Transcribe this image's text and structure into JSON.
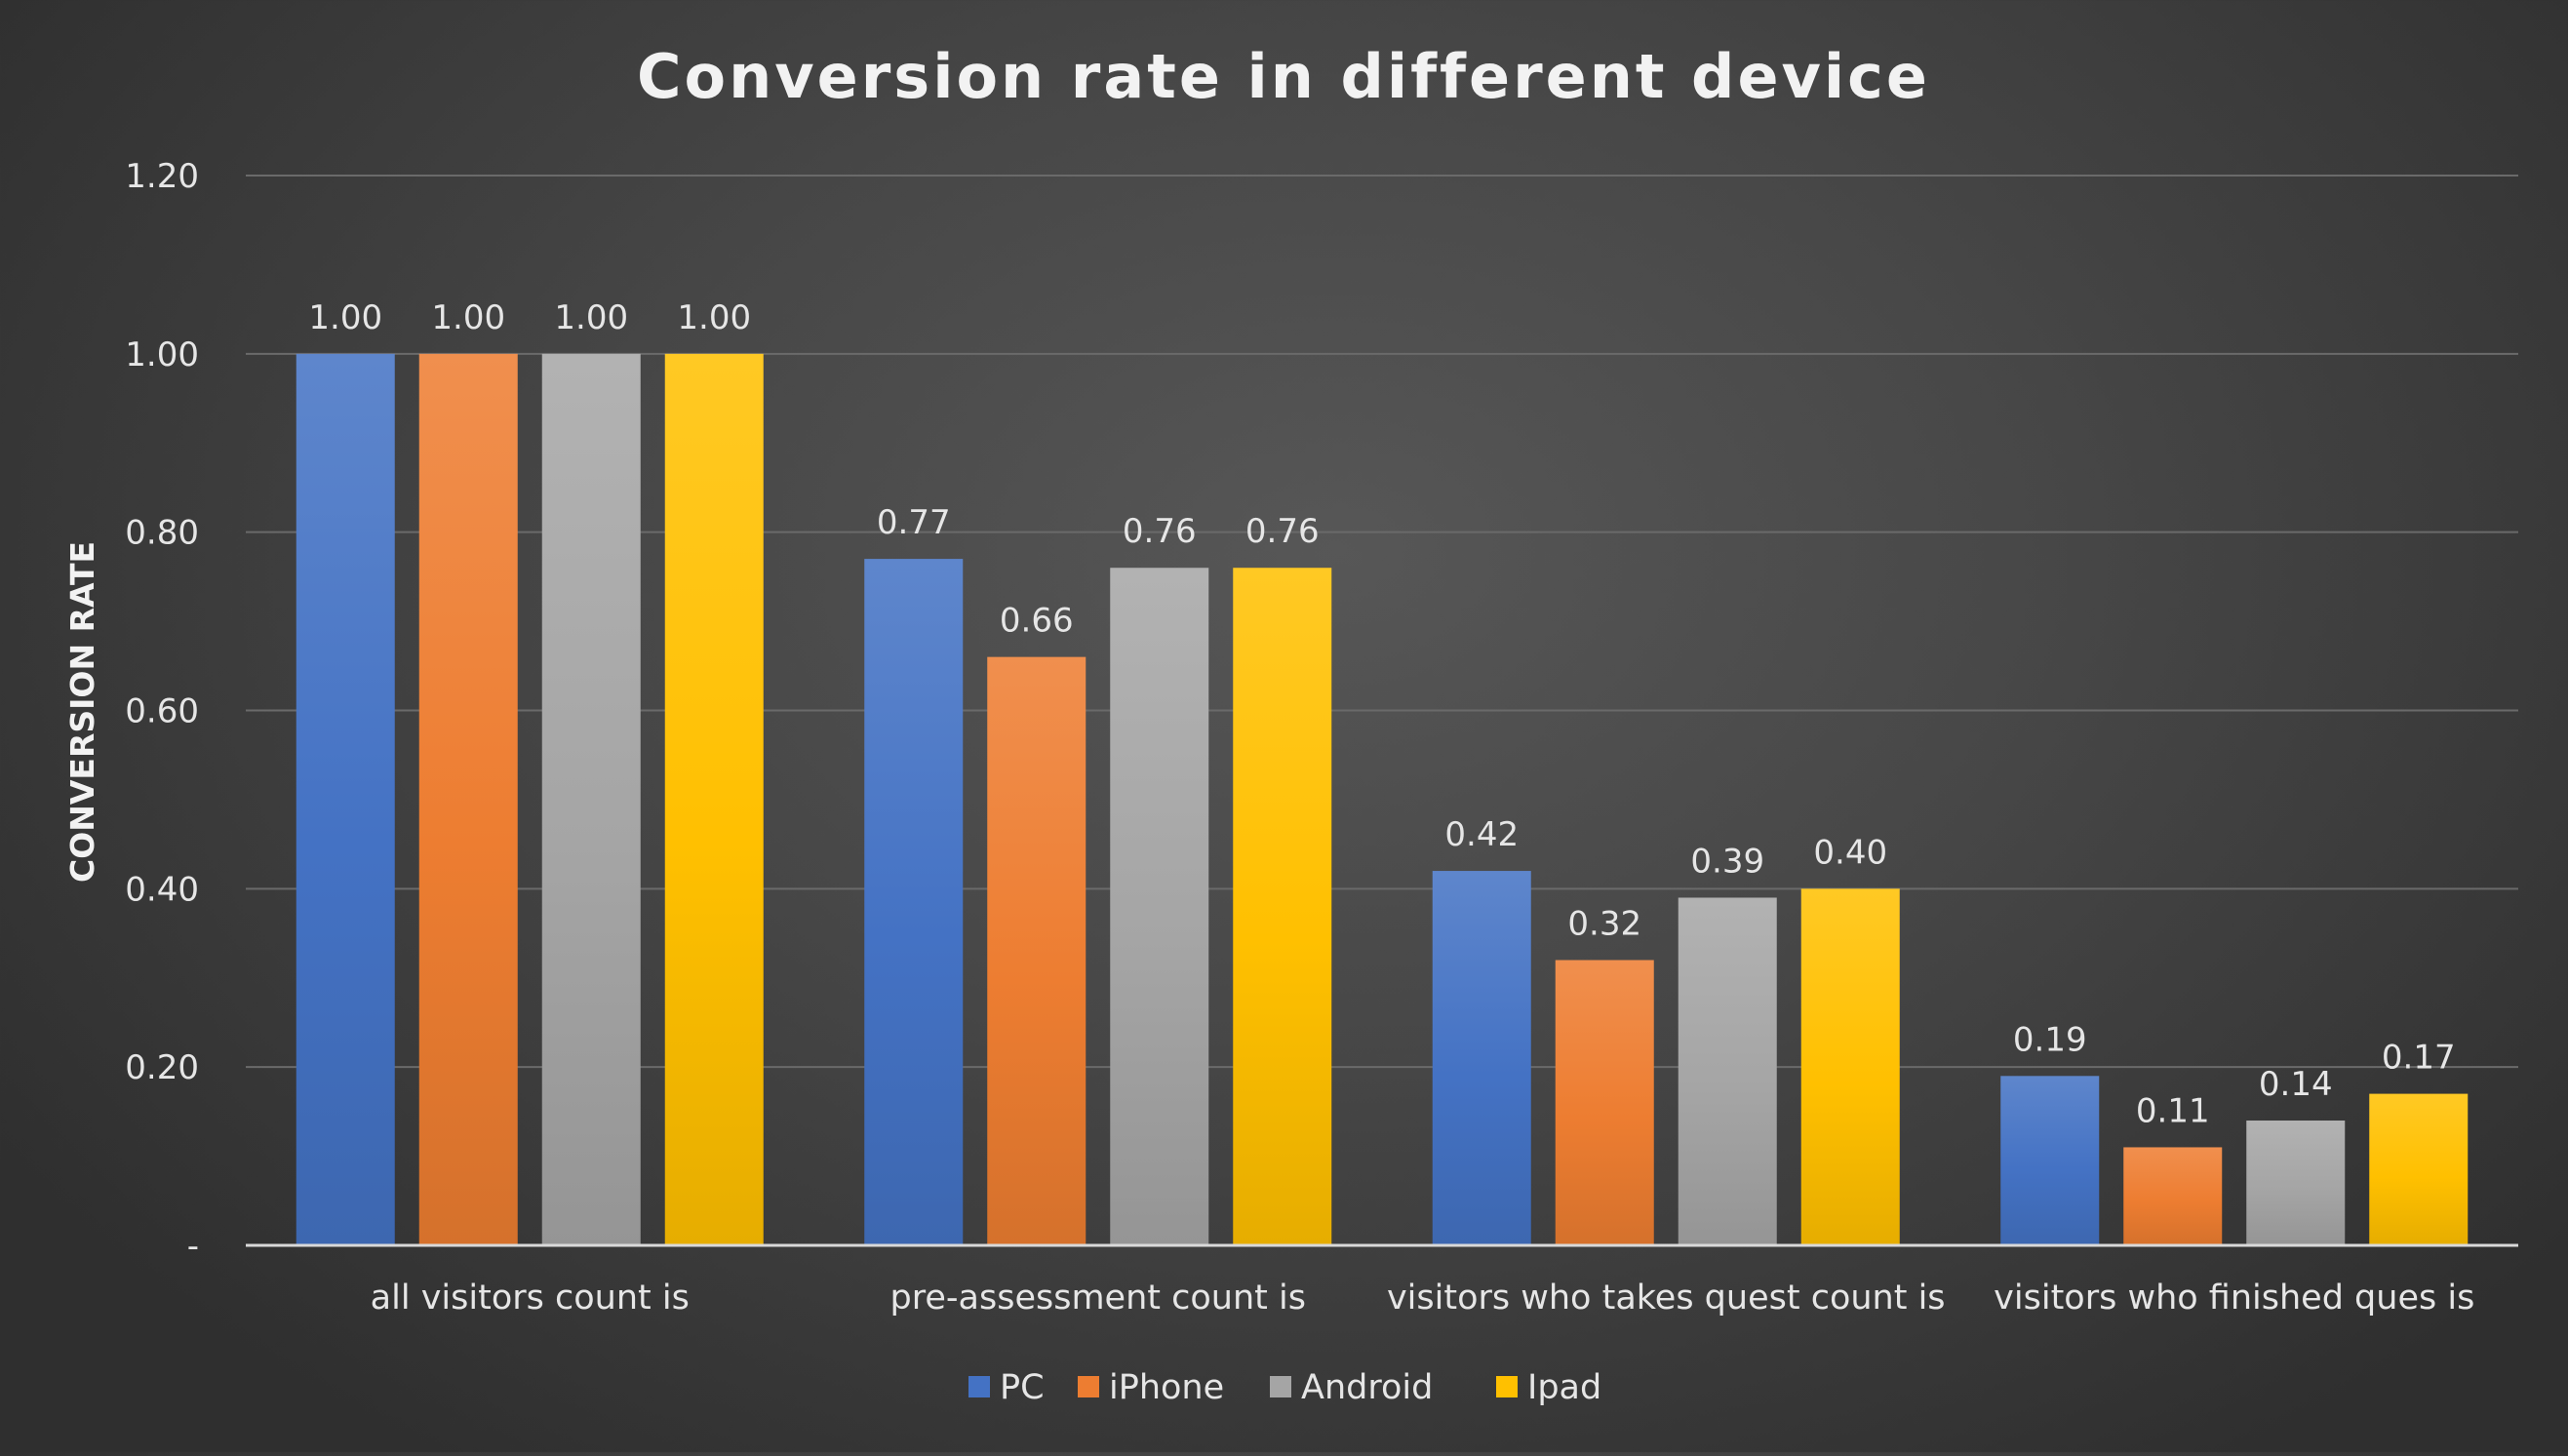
{
  "chart_data": {
    "type": "bar",
    "title": "Conversion rate in different device",
    "xlabel": "",
    "ylabel": "CONVERSION RATE",
    "ylim": [
      0,
      1.2
    ],
    "yticks": [
      0,
      0.2,
      0.4,
      0.6,
      0.8,
      1.0,
      1.2
    ],
    "ytick_labels": [
      "-",
      "0.20",
      "0.40",
      "0.60",
      "0.80",
      "1.00",
      "1.20"
    ],
    "grid": true,
    "legend_position": "bottom",
    "categories": [
      "all visitors count is",
      "pre-assessment count is",
      "visitors who takes quest count is",
      "visitors who finished ques is"
    ],
    "series": [
      {
        "name": "PC",
        "color": "#4472C4",
        "values": [
          1.0,
          0.77,
          0.42,
          0.19
        ]
      },
      {
        "name": "iPhone",
        "color": "#ED7D31",
        "values": [
          1.0,
          0.66,
          0.32,
          0.11
        ]
      },
      {
        "name": "Android",
        "color": "#A5A5A5",
        "values": [
          1.0,
          0.76,
          0.39,
          0.14
        ]
      },
      {
        "name": "Ipad",
        "color": "#FFC000",
        "values": [
          1.0,
          0.76,
          0.4,
          0.17
        ]
      }
    ],
    "data_labels": [
      [
        "1.00",
        "0.77",
        "0.42",
        "0.19"
      ],
      [
        "1.00",
        "0.66",
        "0.32",
        "0.11"
      ],
      [
        "1.00",
        "0.76",
        "0.39",
        "0.14"
      ],
      [
        "1.00",
        "0.76",
        "0.40",
        "0.17"
      ]
    ]
  }
}
